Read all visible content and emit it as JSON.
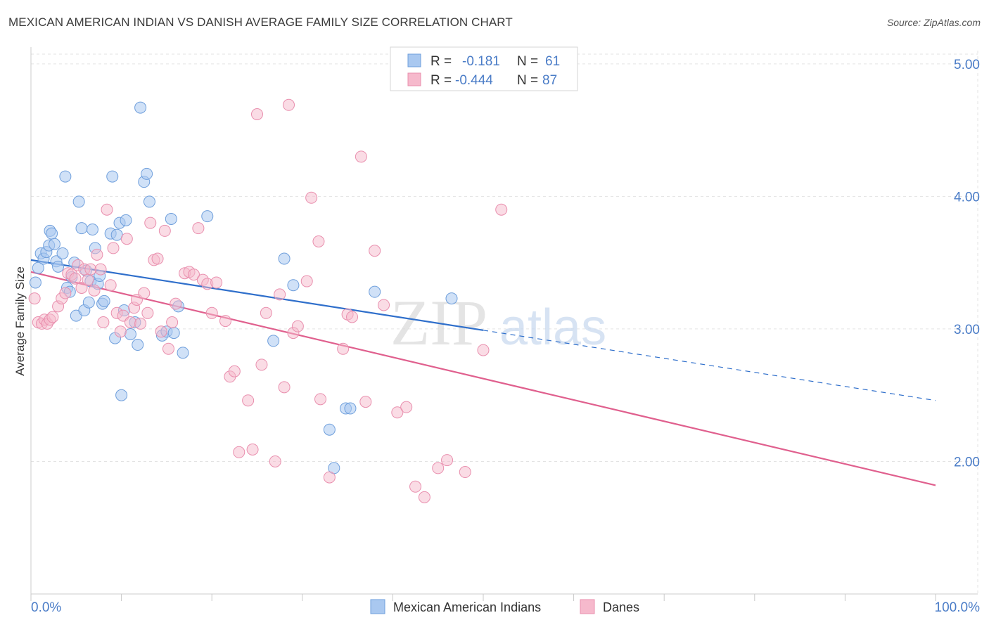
{
  "title": "MEXICAN AMERICAN INDIAN VS DANISH AVERAGE FAMILY SIZE CORRELATION CHART",
  "source": "Source: ZipAtlas.com",
  "watermark": {
    "zip": "ZIP",
    "atlas": "atlas"
  },
  "colors": {
    "blue_fill": "#a9c8f0",
    "blue_stroke": "#6f9fdc",
    "blue_line": "#2f6fcb",
    "pink_fill": "#f6b9cc",
    "pink_stroke": "#e98fae",
    "pink_line": "#e0608e",
    "accent_text": "#4a7cc7",
    "grid": "#e3e3e3"
  },
  "legend": {
    "row1": {
      "r_label": "R =",
      "r_value": "-0.181",
      "n_label": "N =",
      "n_value": "61"
    },
    "row2": {
      "r_label": "R =",
      "r_value": "-0.444",
      "n_label": "N =",
      "n_value": "87"
    }
  },
  "chart_data": {
    "type": "scatter",
    "title": "MEXICAN AMERICAN INDIAN VS DANISH AVERAGE FAMILY SIZE CORRELATION CHART",
    "xlabel": "",
    "ylabel": "Average Family Size",
    "xlim": [
      0,
      100
    ],
    "ylim": [
      1.0,
      5.1
    ],
    "x_tick_labels": [
      {
        "value": 0,
        "label": "0.0%"
      },
      {
        "value": 100,
        "label": "100.0%"
      }
    ],
    "y_ticks": [
      {
        "value": 2.0,
        "label": "2.00"
      },
      {
        "value": 3.0,
        "label": "3.00"
      },
      {
        "value": 4.0,
        "label": "4.00"
      },
      {
        "value": 5.0,
        "label": "5.00"
      }
    ],
    "grid": true,
    "legend_position": "top-center",
    "series": [
      {
        "name": "Mexican American Indians",
        "color": "#a9c8f0",
        "r": -0.181,
        "n": 61,
        "trend": {
          "x_start": 0,
          "y_start": 3.52,
          "x_solid_end": 50,
          "y_solid_end": 2.99,
          "x_end": 100,
          "y_end": 2.46
        },
        "points": [
          [
            0.5,
            3.35
          ],
          [
            0.8,
            3.46
          ],
          [
            1.1,
            3.57
          ],
          [
            1.4,
            3.53
          ],
          [
            1.7,
            3.58
          ],
          [
            2.0,
            3.63
          ],
          [
            2.1,
            3.74
          ],
          [
            2.3,
            3.72
          ],
          [
            2.6,
            3.64
          ],
          [
            2.8,
            3.51
          ],
          [
            3.0,
            3.47
          ],
          [
            3.5,
            3.57
          ],
          [
            3.8,
            4.15
          ],
          [
            4.0,
            3.31
          ],
          [
            4.3,
            3.28
          ],
          [
            4.5,
            3.39
          ],
          [
            4.8,
            3.5
          ],
          [
            5.0,
            3.1
          ],
          [
            5.3,
            3.96
          ],
          [
            5.6,
            3.76
          ],
          [
            5.9,
            3.14
          ],
          [
            6.1,
            3.44
          ],
          [
            6.4,
            3.2
          ],
          [
            6.6,
            3.36
          ],
          [
            6.8,
            3.75
          ],
          [
            7.1,
            3.61
          ],
          [
            7.4,
            3.34
          ],
          [
            7.6,
            3.4
          ],
          [
            7.9,
            3.19
          ],
          [
            8.1,
            3.21
          ],
          [
            8.8,
            3.72
          ],
          [
            9.0,
            4.15
          ],
          [
            9.3,
            2.93
          ],
          [
            9.5,
            3.71
          ],
          [
            9.8,
            3.8
          ],
          [
            10.0,
            2.5
          ],
          [
            10.3,
            3.14
          ],
          [
            10.5,
            3.82
          ],
          [
            11.0,
            2.96
          ],
          [
            11.5,
            3.05
          ],
          [
            11.8,
            2.88
          ],
          [
            12.1,
            4.67
          ],
          [
            12.5,
            4.11
          ],
          [
            12.8,
            4.17
          ],
          [
            13.1,
            3.96
          ],
          [
            14.5,
            2.95
          ],
          [
            15.0,
            2.98
          ],
          [
            15.5,
            3.83
          ],
          [
            15.8,
            2.97
          ],
          [
            16.3,
            3.17
          ],
          [
            16.8,
            2.82
          ],
          [
            19.5,
            3.85
          ],
          [
            26.8,
            2.91
          ],
          [
            28.0,
            3.53
          ],
          [
            29.0,
            3.33
          ],
          [
            33.0,
            2.24
          ],
          [
            33.5,
            1.95
          ],
          [
            34.8,
            2.4
          ],
          [
            35.3,
            2.4
          ],
          [
            38.0,
            3.28
          ],
          [
            46.5,
            3.23
          ]
        ]
      },
      {
        "name": "Danes",
        "color": "#f6b9cc",
        "r": -0.444,
        "n": 87,
        "trend": {
          "x_start": 0,
          "y_start": 3.43,
          "x_end": 100,
          "y_end": 1.82
        },
        "points": [
          [
            0.4,
            3.23
          ],
          [
            0.8,
            3.05
          ],
          [
            1.2,
            3.04
          ],
          [
            1.5,
            3.07
          ],
          [
            1.8,
            3.04
          ],
          [
            2.1,
            3.07
          ],
          [
            2.4,
            3.09
          ],
          [
            3.0,
            3.17
          ],
          [
            3.4,
            3.23
          ],
          [
            3.8,
            3.27
          ],
          [
            4.1,
            3.42
          ],
          [
            4.5,
            3.41
          ],
          [
            4.9,
            3.38
          ],
          [
            5.2,
            3.48
          ],
          [
            5.6,
            3.31
          ],
          [
            5.9,
            3.45
          ],
          [
            6.3,
            3.37
          ],
          [
            6.6,
            3.45
          ],
          [
            7.0,
            3.29
          ],
          [
            7.3,
            3.56
          ],
          [
            7.7,
            3.45
          ],
          [
            8.0,
            3.05
          ],
          [
            8.4,
            3.9
          ],
          [
            8.8,
            3.33
          ],
          [
            9.1,
            3.61
          ],
          [
            9.5,
            3.12
          ],
          [
            9.9,
            2.98
          ],
          [
            10.2,
            3.1
          ],
          [
            10.6,
            3.68
          ],
          [
            11.0,
            3.05
          ],
          [
            11.4,
            3.16
          ],
          [
            11.7,
            3.22
          ],
          [
            12.1,
            3.04
          ],
          [
            12.5,
            3.27
          ],
          [
            12.9,
            3.12
          ],
          [
            13.2,
            3.8
          ],
          [
            13.6,
            3.52
          ],
          [
            14.0,
            3.53
          ],
          [
            14.4,
            2.98
          ],
          [
            14.8,
            3.74
          ],
          [
            15.2,
            2.85
          ],
          [
            15.6,
            3.05
          ],
          [
            16.0,
            3.19
          ],
          [
            17.0,
            3.42
          ],
          [
            17.5,
            3.43
          ],
          [
            18.0,
            3.41
          ],
          [
            18.5,
            3.76
          ],
          [
            19.0,
            3.37
          ],
          [
            19.5,
            3.34
          ],
          [
            20.0,
            3.12
          ],
          [
            20.5,
            3.35
          ],
          [
            21.5,
            3.06
          ],
          [
            22.0,
            2.64
          ],
          [
            22.5,
            2.68
          ],
          [
            23.0,
            2.07
          ],
          [
            24.0,
            2.46
          ],
          [
            24.5,
            2.09
          ],
          [
            25.0,
            4.62
          ],
          [
            25.5,
            2.73
          ],
          [
            26.0,
            3.12
          ],
          [
            27.0,
            2.0
          ],
          [
            27.5,
            3.26
          ],
          [
            28.0,
            2.56
          ],
          [
            28.5,
            4.69
          ],
          [
            29.0,
            2.97
          ],
          [
            29.5,
            3.02
          ],
          [
            30.5,
            3.36
          ],
          [
            31.0,
            3.99
          ],
          [
            31.8,
            3.66
          ],
          [
            32.0,
            2.47
          ],
          [
            33.0,
            1.88
          ],
          [
            34.5,
            2.85
          ],
          [
            35.0,
            3.11
          ],
          [
            35.5,
            3.09
          ],
          [
            36.5,
            4.3
          ],
          [
            37.0,
            2.45
          ],
          [
            38.0,
            3.59
          ],
          [
            39.0,
            3.18
          ],
          [
            40.5,
            2.37
          ],
          [
            41.5,
            2.41
          ],
          [
            42.5,
            1.81
          ],
          [
            43.5,
            1.73
          ],
          [
            45.0,
            1.95
          ],
          [
            46.0,
            2.01
          ],
          [
            48.0,
            1.92
          ],
          [
            50.0,
            2.84
          ],
          [
            52.0,
            3.9
          ]
        ]
      }
    ]
  },
  "bottom_legend": [
    {
      "label": "Mexican American Indians"
    },
    {
      "label": "Danes"
    }
  ]
}
